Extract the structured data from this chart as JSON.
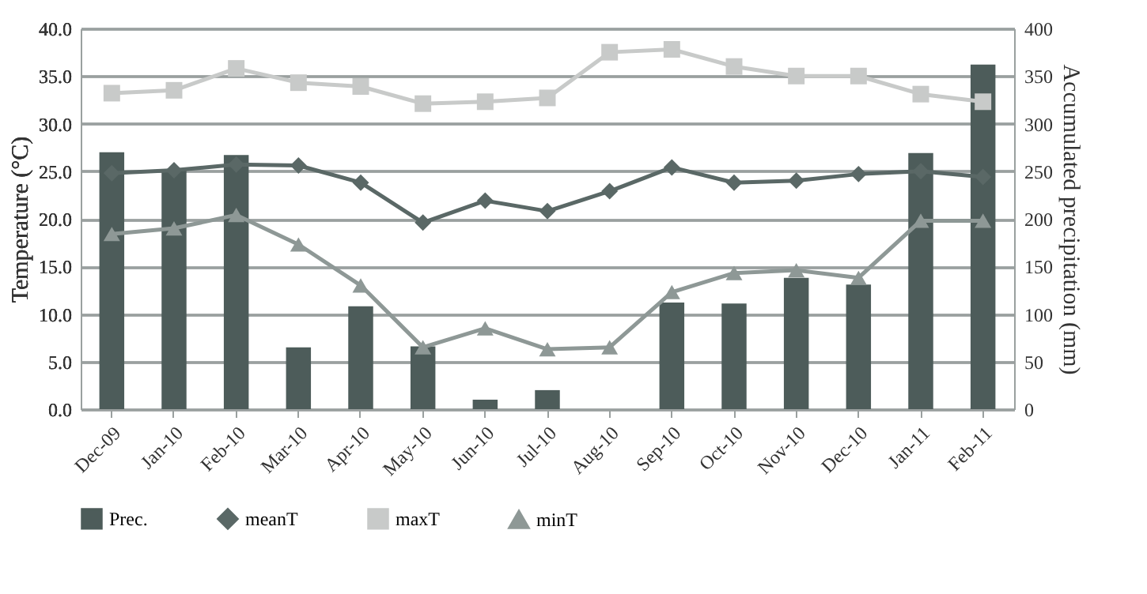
{
  "chart_data": {
    "type": "bar",
    "ylabel": "Temperature (°C)",
    "y2label": "Accumulated precipitation (mm)",
    "categories": [
      "Dec-09",
      "Jan-10",
      "Feb-10",
      "Mar-10",
      "Apr-10",
      "May-10",
      "Jun-10",
      "Jul-10",
      "Aug-10",
      "Sep-10",
      "Oct-10",
      "Nov-10",
      "Dec-10",
      "Jan-11",
      "Feb-11"
    ],
    "series": [
      {
        "name": "Prec.",
        "axis": "y2",
        "color": "#4d5c5a",
        "values": [
          270,
          251,
          267,
          65,
          108,
          66,
          10,
          20,
          0,
          112,
          111,
          138,
          131,
          269,
          362
        ]
      },
      {
        "name": "meanT",
        "type": "line",
        "marker": "diamond",
        "color": "#5a6866",
        "values": [
          24.8,
          25.1,
          25.7,
          25.6,
          23.8,
          19.6,
          21.9,
          20.8,
          22.9,
          25.4,
          23.8,
          24.0,
          24.7,
          25.0,
          24.4
        ]
      },
      {
        "name": "maxT",
        "type": "line",
        "marker": "square",
        "color": "#c8cac9",
        "values": [
          33.2,
          33.5,
          35.8,
          34.3,
          33.9,
          32.1,
          32.3,
          32.7,
          37.5,
          37.8,
          36.0,
          35.0,
          35.0,
          33.1,
          32.3
        ]
      },
      {
        "name": "minT",
        "type": "line",
        "marker": "triangle",
        "color": "#8e9896",
        "values": [
          18.4,
          19.0,
          20.4,
          17.3,
          13.0,
          6.5,
          8.5,
          6.3,
          6.5,
          12.3,
          14.3,
          14.6,
          13.8,
          19.8,
          19.8
        ]
      }
    ],
    "ylim": [
      0,
      40
    ],
    "yticks": [
      {
        "value": 0,
        "label": "0.0"
      },
      {
        "value": 5,
        "label": "5.0"
      },
      {
        "value": 10,
        "label": "10.0"
      },
      {
        "value": 15,
        "label": "15.0"
      },
      {
        "value": 20,
        "label": "20.0"
      },
      {
        "value": 25,
        "label": "25.0"
      },
      {
        "value": 30,
        "label": "30.0"
      },
      {
        "value": 35,
        "label": "35.0"
      },
      {
        "value": 40,
        "label": "40.0"
      }
    ],
    "y2lim": [
      0,
      400
    ],
    "y2ticks": [
      0,
      50,
      100,
      150,
      200,
      250,
      300,
      350,
      400
    ],
    "grid": "y",
    "legend": "bottom"
  }
}
